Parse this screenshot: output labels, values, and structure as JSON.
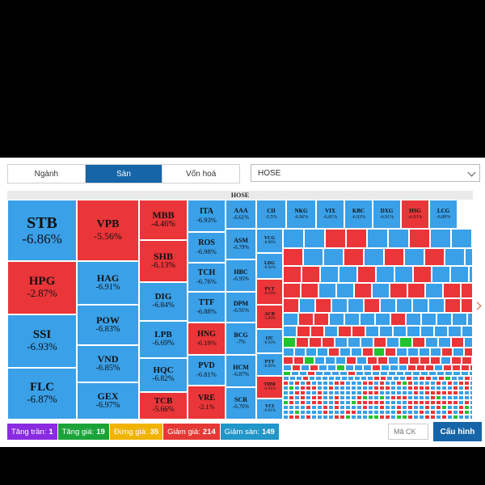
{
  "tabs": [
    {
      "label": "Ngành",
      "active": false
    },
    {
      "label": "Sàn",
      "active": true
    },
    {
      "label": "Vốn hoá",
      "active": false
    }
  ],
  "exchange_select": {
    "value": "HOSE"
  },
  "treemap": {
    "title": "HOSE",
    "colors": {
      "down": "#3aa0e8",
      "up": "#ea3539",
      "green": "#22c32e"
    },
    "tiles": [
      {
        "t": "STB",
        "p": "-6.86%",
        "c": "blue"
      },
      {
        "t": "HPG",
        "p": "-2.87%",
        "c": "red"
      },
      {
        "t": "SSI",
        "p": "-6.93%",
        "c": "blue"
      },
      {
        "t": "FLC",
        "p": "-6.87%",
        "c": "blue"
      },
      {
        "t": "VPB",
        "p": "-5.56%",
        "c": "red"
      },
      {
        "t": "HAG",
        "p": "-6.91%",
        "c": "blue"
      },
      {
        "t": "POW",
        "p": "-6.83%",
        "c": "blue"
      },
      {
        "t": "VND",
        "p": "-6.85%",
        "c": "blue"
      },
      {
        "t": "GEX",
        "p": "-6.97%",
        "c": "blue"
      },
      {
        "t": "MBB",
        "p": "-4.46%",
        "c": "red"
      },
      {
        "t": "SHB",
        "p": "-6.13%",
        "c": "red"
      },
      {
        "t": "DIG",
        "p": "-6.84%",
        "c": "blue"
      },
      {
        "t": "LPB",
        "p": "-6.69%",
        "c": "blue"
      },
      {
        "t": "HQC",
        "p": "-6.82%",
        "c": "blue"
      },
      {
        "t": "TCB",
        "p": "-5.66%",
        "c": "red"
      },
      {
        "t": "ITA",
        "p": "-6.93%",
        "c": "blue"
      },
      {
        "t": "ROS",
        "p": "-6.98%",
        "c": "blue"
      },
      {
        "t": "TCH",
        "p": "-6.76%",
        "c": "blue"
      },
      {
        "t": "TTF",
        "p": "-6.88%",
        "c": "blue"
      },
      {
        "t": "HNG",
        "p": "-6.19%",
        "c": "red"
      },
      {
        "t": "PVD",
        "p": "-6.81%",
        "c": "blue"
      },
      {
        "t": "VRE",
        "p": "-2.1%",
        "c": "red"
      },
      {
        "t": "AAA",
        "p": "-6.61%",
        "c": "blue"
      },
      {
        "t": "ASM",
        "p": "-6.79%",
        "c": "blue"
      },
      {
        "t": "HBC",
        "p": "-6.95%",
        "c": "blue"
      },
      {
        "t": "DPM",
        "p": "-6.91%",
        "c": "blue"
      },
      {
        "t": "BCG",
        "p": "-7%",
        "c": "blue"
      },
      {
        "t": "HCM",
        "p": "-6.87%",
        "c": "blue"
      },
      {
        "t": "SCR",
        "p": "-6.76%",
        "c": "blue"
      },
      {
        "t": "CII",
        "p": "-5.5%",
        "c": "blue"
      },
      {
        "t": "NKG",
        "p": "-6.96%",
        "c": "blue"
      },
      {
        "t": "VIX",
        "p": "-6.81%",
        "c": "blue"
      },
      {
        "t": "KBC",
        "p": "-6.93%",
        "c": "blue"
      },
      {
        "t": "DXG",
        "p": "-6.91%",
        "c": "blue"
      },
      {
        "t": "HSG",
        "p": "-6.93%",
        "c": "red"
      },
      {
        "t": "LCG",
        "p": "-6.89%",
        "c": "blue"
      },
      {
        "t": "VCG",
        "p": "-6.96%",
        "c": "blue"
      },
      {
        "t": "LDG",
        "p": "-6.93%",
        "c": "blue"
      },
      {
        "t": "PVT",
        "p": "-6.19%",
        "c": "red"
      },
      {
        "t": "ACB",
        "p": "-5.89%",
        "c": "red"
      },
      {
        "t": "IJC",
        "p": "-6.93%",
        "c": "blue"
      },
      {
        "t": "PTT",
        "p": "-6.89%",
        "c": "blue"
      },
      {
        "t": "THM",
        "p": "-6.91%",
        "c": "red"
      },
      {
        "t": "VCI",
        "p": "-6.91%",
        "c": "blue"
      }
    ]
  },
  "legend": [
    {
      "label": "Tăng trần:",
      "count": "1",
      "color": "#8a2be2"
    },
    {
      "label": "Tăng giá:",
      "count": "19",
      "color": "#1ba33a"
    },
    {
      "label": "Đứng giá:",
      "count": "35",
      "color": "#f0b400"
    },
    {
      "label": "Giảm giá:",
      "count": "214",
      "color": "#e53935"
    },
    {
      "label": "Giảm sàn:",
      "count": "149",
      "color": "#2196c8"
    }
  ],
  "search": {
    "placeholder": "Mã CK"
  },
  "config_button": {
    "label": "Cấu hình"
  }
}
